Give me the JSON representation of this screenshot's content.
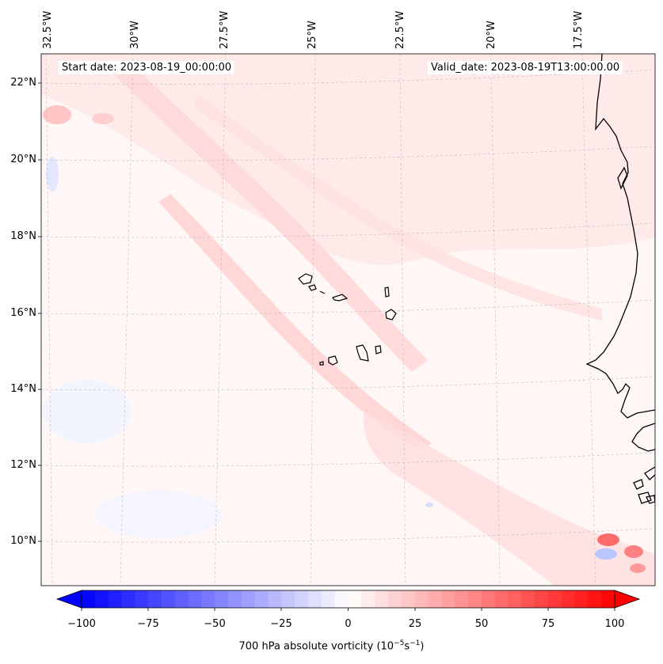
{
  "annotations": {
    "start_date": "Start date: 2023-08-19_00:00:00",
    "valid_date": "Valid_date: 2023-08-19T13:00:00.00"
  },
  "longitude_labels": [
    "32.5°W",
    "30°W",
    "27.5°W",
    "25°W",
    "22.5°W",
    "20°W",
    "17.5°W"
  ],
  "latitude_labels": [
    "22°N",
    "20°N",
    "18°N",
    "16°N",
    "14°N",
    "12°N",
    "10°N"
  ],
  "colorbar": {
    "ticks": [
      "−100",
      "−75",
      "−50",
      "−25",
      "0",
      "25",
      "50",
      "75",
      "100"
    ],
    "label_prefix": "700 hPa absolute vorticity (10",
    "label_exp1": "−5",
    "label_mid": "s",
    "label_exp2": "−1",
    "label_suffix": ")",
    "min_color": "#0000ff",
    "max_color": "#ff0000"
  },
  "colors": {
    "background_field": "#fff5f5",
    "positive_tint": "#ffd6d6",
    "negative_tint": "#eef2ff",
    "coastline": "#000000"
  }
}
